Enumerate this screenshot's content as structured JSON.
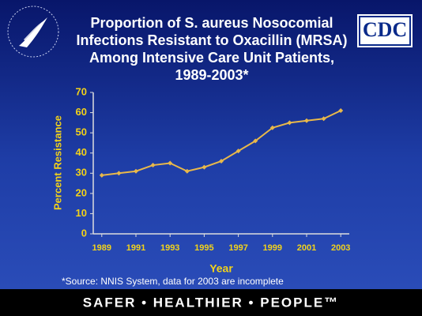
{
  "chart_data": {
    "type": "line",
    "title_lines": [
      "Proportion of S. aureus Nosocomial",
      "Infections Resistant to Oxacillin (MRSA)",
      "Among Intensive Care Unit Patients,",
      "1989-2003*"
    ],
    "logo": "CDC",
    "x_label": "Year",
    "y_label": "Percent Resistance",
    "x": [
      1989,
      1990,
      1991,
      1992,
      1993,
      1994,
      1995,
      1996,
      1997,
      1998,
      1999,
      2000,
      2001,
      2002,
      2003
    ],
    "series": [
      {
        "color": "#e8b84a",
        "values": [
          29,
          30,
          31,
          34,
          35,
          31,
          33,
          36,
          41,
          46,
          52.5,
          55,
          56,
          57,
          61
        ]
      }
    ],
    "xlim": [
      1988.5,
      2003.5
    ],
    "xticks": [
      1989,
      1991,
      1993,
      1995,
      1997,
      1999,
      2001,
      2003
    ],
    "ylim": [
      0,
      70
    ],
    "yticks": [
      0,
      10,
      20,
      30,
      40,
      50,
      60,
      70
    ],
    "footnote": "*Source: NNIS System, data for 2003 are incomplete",
    "tagline": "SAFER • HEALTHIER • PEOPLE™"
  }
}
